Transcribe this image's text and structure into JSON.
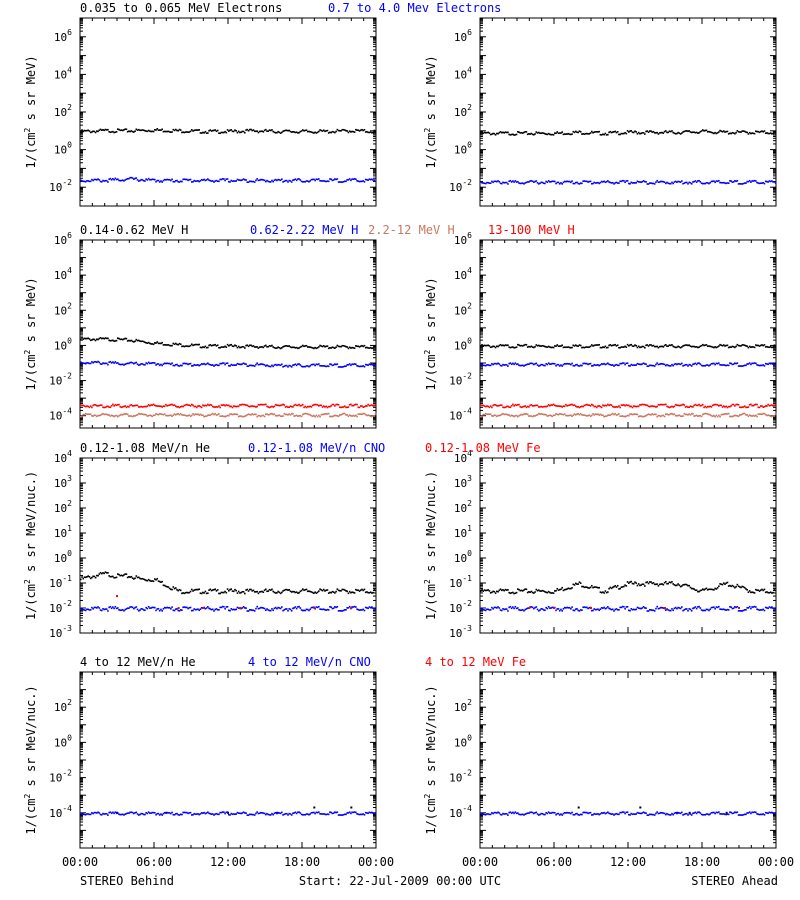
{
  "colors": {
    "black": "#000000",
    "blue": "#0000ff",
    "salmon": "#c87860",
    "red": "#ff0000"
  },
  "footer": {
    "left_label": "STEREO Behind",
    "center_label": "Start: 22-Jul-2009 00:00 UTC",
    "right_label": "STEREO Ahead"
  },
  "x_ticks": [
    "00:00",
    "06:00",
    "12:00",
    "18:00",
    "00:00"
  ],
  "chart_data": [
    {
      "type": "scatter",
      "title": "",
      "yscale": "log",
      "xlim": [
        0,
        24
      ],
      "ylim": [
        0.001,
        10000000
      ],
      "ylabel_parts": [
        "1/(cm",
        "2",
        " s sr MeV)"
      ],
      "yticks": [
        {
          "exp": "-2"
        },
        {
          "exp": "0"
        },
        {
          "exp": "2"
        },
        {
          "exp": "4"
        },
        {
          "exp": "6"
        }
      ],
      "legend": [
        {
          "label": "0.035 to 0.065 MeV Electrons",
          "color": "#000000"
        },
        {
          "label": "0.7 to 4.0 Mev Electrons",
          "color": "#0000ff"
        }
      ],
      "series": [
        {
          "color": "#000000",
          "x": [
            0,
            2,
            4,
            6,
            8,
            10,
            12,
            14,
            16,
            18,
            20,
            22,
            24
          ],
          "y": [
            10,
            11,
            11,
            12,
            11,
            10,
            10,
            11,
            10,
            10,
            10,
            11,
            10
          ]
        },
        {
          "color": "#0000ff",
          "x": [
            0,
            2,
            4,
            6,
            8,
            10,
            12,
            14,
            16,
            18,
            20,
            22,
            24
          ],
          "y": [
            0.025,
            0.025,
            0.03,
            0.025,
            0.025,
            0.025,
            0.025,
            0.025,
            0.025,
            0.025,
            0.025,
            0.025,
            0.025
          ]
        }
      ]
    },
    {
      "type": "scatter",
      "title": "",
      "yscale": "log",
      "xlim": [
        0,
        24
      ],
      "ylim": [
        0.001,
        10000000
      ],
      "ylabel_parts": [
        "1/(cm",
        "2",
        " s sr MeV)"
      ],
      "yticks": [
        {
          "exp": "-2"
        },
        {
          "exp": "0"
        },
        {
          "exp": "2"
        },
        {
          "exp": "4"
        },
        {
          "exp": "6"
        }
      ],
      "legend": [],
      "series": [
        {
          "color": "#000000",
          "x": [
            0,
            2,
            4,
            6,
            8,
            10,
            12,
            14,
            16,
            18,
            20,
            22,
            24
          ],
          "y": [
            8,
            8,
            8,
            8,
            9,
            8,
            9,
            9,
            9,
            10,
            9,
            9,
            9
          ]
        },
        {
          "color": "#0000ff",
          "x": [
            0,
            2,
            4,
            6,
            8,
            10,
            12,
            14,
            16,
            18,
            20,
            22,
            24
          ],
          "y": [
            0.02,
            0.02,
            0.02,
            0.02,
            0.02,
            0.02,
            0.02,
            0.02,
            0.02,
            0.02,
            0.02,
            0.02,
            0.02
          ]
        }
      ]
    },
    {
      "type": "scatter",
      "title": "",
      "yscale": "log",
      "xlim": [
        0,
        24
      ],
      "ylim": [
        2e-05,
        1000000
      ],
      "ylabel_parts": [
        "1/(cm",
        "2",
        " s sr MeV)"
      ],
      "yticks": [
        {
          "exp": "-4"
        },
        {
          "exp": "-2"
        },
        {
          "exp": "0"
        },
        {
          "exp": "2"
        },
        {
          "exp": "4"
        },
        {
          "exp": "6"
        }
      ],
      "legend": [
        {
          "label": "0.14-0.62 MeV H",
          "color": "#000000"
        },
        {
          "label": "0.62-2.22 MeV H",
          "color": "#0000ff"
        },
        {
          "label": "2.2-12 MeV H",
          "color": "#c87860"
        },
        {
          "label": "13-100 MeV H",
          "color": "#ff0000"
        }
      ],
      "series": [
        {
          "color": "#000000",
          "x": [
            0,
            2,
            4,
            6,
            8,
            10,
            12,
            14,
            16,
            18,
            20,
            22,
            24
          ],
          "y": [
            2.5,
            2.5,
            2.2,
            1.5,
            1.2,
            1.0,
            1.0,
            0.95,
            0.9,
            0.9,
            0.9,
            0.9,
            0.9
          ]
        },
        {
          "color": "#0000ff",
          "x": [
            0,
            2,
            4,
            6,
            8,
            10,
            12,
            14,
            16,
            18,
            20,
            22,
            24
          ],
          "y": [
            0.12,
            0.11,
            0.1,
            0.1,
            0.09,
            0.09,
            0.09,
            0.09,
            0.08,
            0.08,
            0.08,
            0.08,
            0.08
          ]
        },
        {
          "color": "#c87860",
          "x": [
            0,
            2,
            4,
            6,
            8,
            10,
            12,
            14,
            16,
            18,
            20,
            22,
            24
          ],
          "y": [
            0.00012,
            0.00012,
            0.00012,
            0.00012,
            0.00012,
            0.00012,
            0.00012,
            0.00012,
            0.00012,
            0.00012,
            0.00012,
            0.00012,
            0.00012
          ]
        },
        {
          "color": "#ff0000",
          "x": [
            0,
            2,
            4,
            6,
            8,
            10,
            12,
            14,
            16,
            18,
            20,
            22,
            24
          ],
          "y": [
            0.0004,
            0.0004,
            0.0004,
            0.0004,
            0.0004,
            0.0004,
            0.0004,
            0.0004,
            0.0004,
            0.0004,
            0.0004,
            0.0004,
            0.0004
          ]
        }
      ]
    },
    {
      "type": "scatter",
      "title": "",
      "yscale": "log",
      "xlim": [
        0,
        24
      ],
      "ylim": [
        2e-05,
        1000000
      ],
      "ylabel_parts": [
        "1/(cm",
        "2",
        " s sr MeV)"
      ],
      "yticks": [
        {
          "exp": "-4"
        },
        {
          "exp": "-2"
        },
        {
          "exp": "0"
        },
        {
          "exp": "2"
        },
        {
          "exp": "4"
        },
        {
          "exp": "6"
        }
      ],
      "legend": [],
      "series": [
        {
          "color": "#000000",
          "x": [
            0,
            2,
            4,
            6,
            8,
            10,
            12,
            14,
            16,
            18,
            20,
            22,
            24
          ],
          "y": [
            1.0,
            1.0,
            1.0,
            1.0,
            1.0,
            1.0,
            1.0,
            1.0,
            1.0,
            1.0,
            1.0,
            1.0,
            1.0
          ]
        },
        {
          "color": "#0000ff",
          "x": [
            0,
            2,
            4,
            6,
            8,
            10,
            12,
            14,
            16,
            18,
            20,
            22,
            24
          ],
          "y": [
            0.09,
            0.09,
            0.09,
            0.09,
            0.09,
            0.09,
            0.09,
            0.09,
            0.09,
            0.09,
            0.09,
            0.09,
            0.09
          ]
        },
        {
          "color": "#c87860",
          "x": [
            0,
            2,
            4,
            6,
            8,
            10,
            12,
            14,
            16,
            18,
            20,
            22,
            24
          ],
          "y": [
            0.00012,
            0.00012,
            0.00012,
            0.00012,
            0.00012,
            0.00012,
            0.00012,
            0.00012,
            0.00012,
            0.00012,
            0.00012,
            0.00012,
            0.00012
          ]
        },
        {
          "color": "#ff0000",
          "x": [
            0,
            2,
            4,
            6,
            8,
            10,
            12,
            14,
            16,
            18,
            20,
            22,
            24
          ],
          "y": [
            0.0004,
            0.0004,
            0.0004,
            0.0004,
            0.0004,
            0.0004,
            0.0004,
            0.0004,
            0.0004,
            0.0004,
            0.0004,
            0.0004,
            0.0004
          ]
        }
      ]
    },
    {
      "type": "scatter",
      "title": "",
      "yscale": "log",
      "xlim": [
        0,
        24
      ],
      "ylim": [
        0.001,
        10000
      ],
      "ylabel_parts": [
        "1/(cm",
        "2",
        " s sr MeV/nuc.)"
      ],
      "yticks": [
        {
          "exp": "-3"
        },
        {
          "exp": "-2"
        },
        {
          "exp": "-1"
        },
        {
          "exp": "0"
        },
        {
          "exp": "1"
        },
        {
          "exp": "2"
        },
        {
          "exp": "3"
        },
        {
          "exp": "4"
        }
      ],
      "legend": [
        {
          "label": "0.12-1.08 MeV/n He",
          "color": "#000000"
        },
        {
          "label": "0.12-1.08 MeV/n CNO",
          "color": "#0000ff"
        },
        {
          "label": "0.12-1.08 MeV Fe",
          "color": "#ff0000"
        }
      ],
      "series": [
        {
          "color": "#000000",
          "x": [
            0,
            1,
            2,
            3,
            4,
            5,
            6,
            8,
            10,
            12,
            14,
            16,
            18,
            20,
            22,
            24
          ],
          "y": [
            0.15,
            0.2,
            0.25,
            0.2,
            0.2,
            0.15,
            0.15,
            0.05,
            0.05,
            0.05,
            0.05,
            0.05,
            0.05,
            0.05,
            0.05,
            0.05
          ]
        },
        {
          "color": "#0000ff",
          "x": [
            0,
            2,
            4,
            6,
            8,
            10,
            12,
            14,
            16,
            18,
            20,
            22,
            24
          ],
          "y": [
            0.01,
            0.01,
            0.01,
            0.01,
            0.01,
            0.01,
            0.01,
            0.01,
            0.01,
            0.01,
            0.01,
            0.01,
            0.01
          ]
        },
        {
          "color": "#ff0000",
          "x": [
            3,
            8,
            10,
            13,
            19,
            22
          ],
          "y": [
            0.03,
            0.01,
            0.01,
            0.01,
            0.01,
            0.01
          ]
        }
      ]
    },
    {
      "type": "scatter",
      "title": "",
      "yscale": "log",
      "xlim": [
        0,
        24
      ],
      "ylim": [
        0.001,
        10000
      ],
      "ylabel_parts": [
        "1/(cm",
        "2",
        " s sr MeV/nuc.)"
      ],
      "yticks": [
        {
          "exp": "-3"
        },
        {
          "exp": "-2"
        },
        {
          "exp": "-1"
        },
        {
          "exp": "0"
        },
        {
          "exp": "1"
        },
        {
          "exp": "2"
        },
        {
          "exp": "3"
        },
        {
          "exp": "4"
        }
      ],
      "legend": [],
      "series": [
        {
          "color": "#000000",
          "x": [
            0,
            2,
            4,
            6,
            8,
            10,
            12,
            14,
            16,
            18,
            20,
            22,
            24
          ],
          "y": [
            0.05,
            0.05,
            0.05,
            0.05,
            0.1,
            0.05,
            0.1,
            0.1,
            0.1,
            0.05,
            0.1,
            0.05,
            0.05
          ]
        },
        {
          "color": "#0000ff",
          "x": [
            0,
            2,
            4,
            6,
            8,
            10,
            12,
            14,
            16,
            18,
            20,
            22,
            24
          ],
          "y": [
            0.01,
            0.01,
            0.01,
            0.01,
            0.01,
            0.01,
            0.01,
            0.01,
            0.01,
            0.01,
            0.01,
            0.01,
            0.01
          ]
        },
        {
          "color": "#ff0000",
          "x": [
            4,
            6,
            9,
            15,
            21
          ],
          "y": [
            0.01,
            0.01,
            0.01,
            0.01,
            0.01
          ]
        }
      ]
    },
    {
      "type": "scatter",
      "title": "",
      "yscale": "log",
      "xlim": [
        0,
        24
      ],
      "ylim": [
        1e-06,
        10000
      ],
      "ylabel_parts": [
        "1/(cm",
        "2",
        " s sr MeV/nuc.)"
      ],
      "yticks": [
        {
          "exp": "-4"
        },
        {
          "exp": "-2"
        },
        {
          "exp": "0"
        },
        {
          "exp": "2"
        }
      ],
      "legend": [
        {
          "label": "4 to 12 MeV/n He",
          "color": "#000000"
        },
        {
          "label": "4 to 12 MeV/n CNO",
          "color": "#0000ff"
        },
        {
          "label": "4 to 12 MeV Fe",
          "color": "#ff0000"
        }
      ],
      "series": [
        {
          "color": "#000000",
          "x": [
            3,
            7,
            12,
            16,
            19,
            22
          ],
          "y": [
            0.0001,
            0.0001,
            0.0001,
            0.0001,
            0.0002,
            0.0002
          ]
        },
        {
          "color": "#0000ff",
          "x": [
            0,
            2,
            4,
            6,
            8,
            10,
            12,
            14,
            16,
            18,
            20,
            22,
            24
          ],
          "y": [
            0.0001,
            0.0001,
            0.0001,
            0.0001,
            0.0001,
            0.0001,
            0.0001,
            0.0001,
            0.0001,
            0.0001,
            0.0001,
            0.0001,
            0.0001
          ]
        }
      ]
    },
    {
      "type": "scatter",
      "title": "",
      "yscale": "log",
      "xlim": [
        0,
        24
      ],
      "ylim": [
        1e-06,
        10000
      ],
      "ylabel_parts": [
        "1/(cm",
        "2",
        " s sr MeV/nuc.)"
      ],
      "yticks": [
        {
          "exp": "-4"
        },
        {
          "exp": "-2"
        },
        {
          "exp": "0"
        },
        {
          "exp": "2"
        }
      ],
      "legend": [],
      "series": [
        {
          "color": "#000000",
          "x": [
            8,
            13,
            16,
            17,
            20
          ],
          "y": [
            0.0002,
            0.0002,
            0.0001,
            0.0001,
            0.0001
          ]
        },
        {
          "color": "#0000ff",
          "x": [
            2,
            4,
            6,
            8,
            10,
            12,
            14,
            16,
            18,
            20,
            22,
            24
          ],
          "y": [
            0.0001,
            0.0001,
            0.0001,
            0.0001,
            0.0001,
            0.0001,
            0.0001,
            0.0001,
            0.0001,
            0.0001,
            0.0001,
            0.0001
          ]
        }
      ]
    }
  ]
}
